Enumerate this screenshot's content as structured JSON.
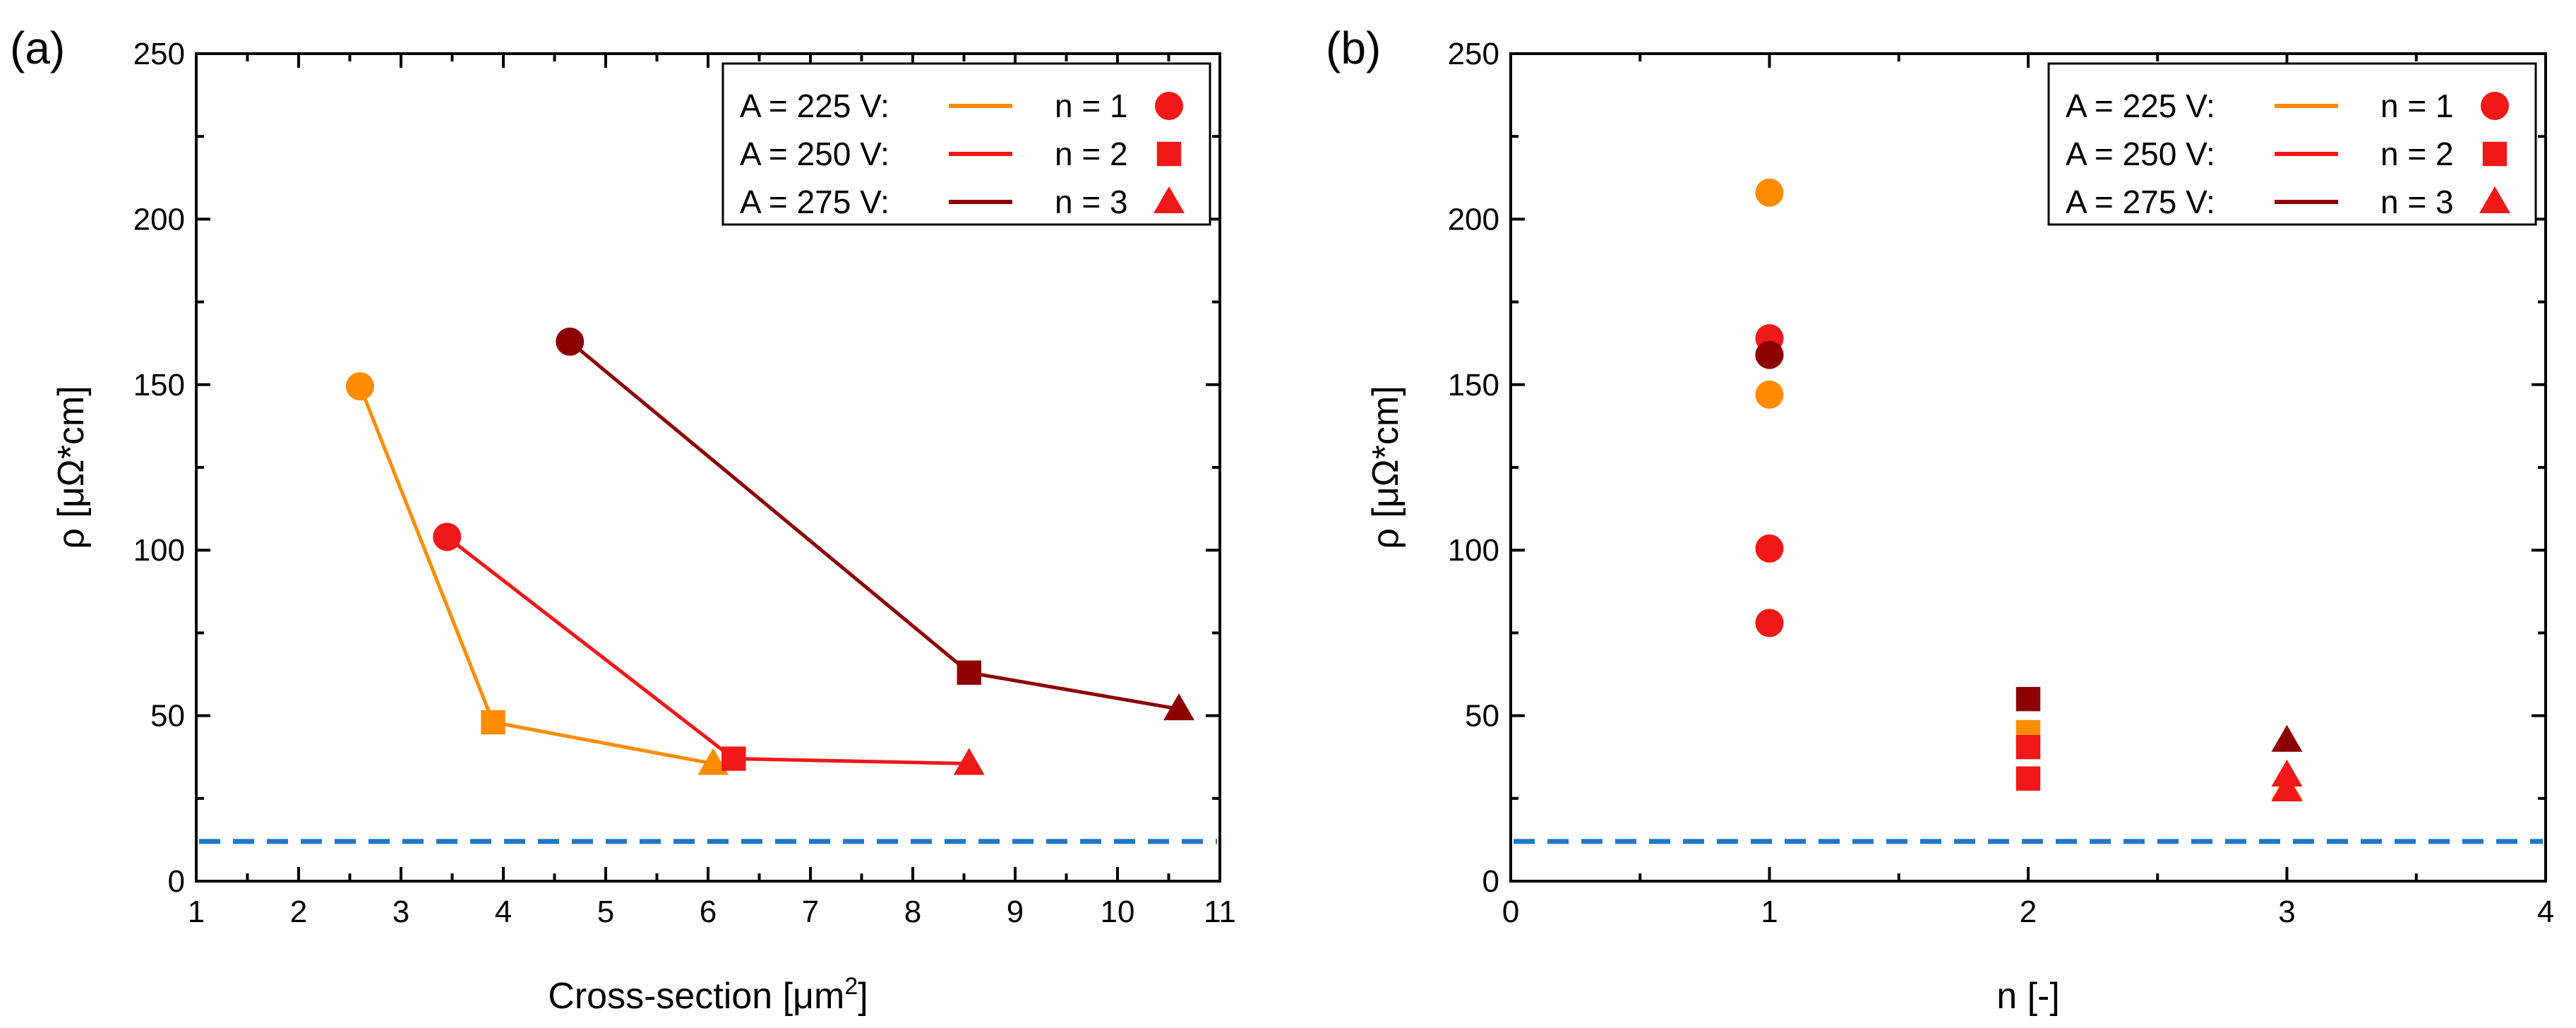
{
  "colors": {
    "v225": "#ff8c00",
    "v250": "#f01818",
    "v275": "#8c0000",
    "marker_legend": "#f01818",
    "reference": "#1f78c8"
  },
  "chart_data": [
    {
      "type": "scatter",
      "panel_label": "(a)",
      "xlabel_prefix": "Cross-section [μm",
      "xlabel_sup": "2",
      "xlabel_suffix": "]",
      "ylabel": "ρ [μΩ*cm]",
      "xlim": [
        1,
        11
      ],
      "ylim": [
        0,
        250
      ],
      "xticks": [
        1,
        2,
        3,
        4,
        5,
        6,
        7,
        8,
        9,
        10,
        11
      ],
      "yticks": [
        0,
        50,
        100,
        150,
        200,
        250
      ],
      "connect_series": true,
      "series": [
        {
          "name": "A = 225 V",
          "color_key": "v225",
          "points": [
            {
              "x": 2.6,
              "y": 149.5,
              "n": 1
            },
            {
              "x": 3.9,
              "y": 48,
              "n": 2
            },
            {
              "x": 6.05,
              "y": 35.5,
              "n": 3
            }
          ]
        },
        {
          "name": "A = 250 V",
          "color_key": "v250",
          "points": [
            {
              "x": 3.45,
              "y": 104,
              "n": 1
            },
            {
              "x": 6.25,
              "y": 37,
              "n": 2
            },
            {
              "x": 8.55,
              "y": 35.5,
              "n": 3
            }
          ]
        },
        {
          "name": "A = 275 V",
          "color_key": "v275",
          "points": [
            {
              "x": 4.65,
              "y": 163,
              "n": 1
            },
            {
              "x": 8.55,
              "y": 63,
              "n": 2
            },
            {
              "x": 10.6,
              "y": 52,
              "n": 3
            }
          ]
        }
      ],
      "reference_line": {
        "y": 12,
        "style": "dashed",
        "color_key": "reference"
      },
      "legend": {
        "position": "top-right",
        "rows": [
          {
            "label": "A = 225 V:",
            "color_key": "v225",
            "n_label": "n = 1",
            "marker": "circle"
          },
          {
            "label": "A = 250 V:",
            "color_key": "v250",
            "n_label": "n = 2",
            "marker": "square"
          },
          {
            "label": "A = 275 V:",
            "color_key": "v275",
            "n_label": "n = 3",
            "marker": "triangle"
          }
        ]
      }
    },
    {
      "type": "scatter",
      "panel_label": "(b)",
      "xlabel": "n [-]",
      "ylabel": "ρ [μΩ*cm]",
      "xlim": [
        0,
        4
      ],
      "ylim": [
        0,
        250
      ],
      "xticks": [
        0,
        1,
        2,
        3,
        4
      ],
      "yticks": [
        0,
        50,
        100,
        150,
        200,
        250
      ],
      "connect_series": false,
      "series": [
        {
          "name": "A = 225 V",
          "color_key": "v225",
          "points": [
            {
              "x": 1,
              "y": 208,
              "n": 1
            },
            {
              "x": 1,
              "y": 147,
              "n": 1
            },
            {
              "x": 2,
              "y": 45,
              "n": 2
            },
            {
              "x": 3,
              "y": 28,
              "n": 3
            }
          ]
        },
        {
          "name": "A = 250 V",
          "color_key": "v250",
          "points": [
            {
              "x": 1,
              "y": 164,
              "n": 1
            },
            {
              "x": 1,
              "y": 100.5,
              "n": 1
            },
            {
              "x": 1,
              "y": 78,
              "n": 1
            },
            {
              "x": 2,
              "y": 40.5,
              "n": 2
            },
            {
              "x": 2,
              "y": 31,
              "n": 2
            },
            {
              "x": 3,
              "y": 32,
              "n": 3
            },
            {
              "x": 3,
              "y": 27.5,
              "n": 3
            }
          ]
        },
        {
          "name": "A = 275 V",
          "color_key": "v275",
          "points": [
            {
              "x": 1,
              "y": 159,
              "n": 1
            },
            {
              "x": 2,
              "y": 55,
              "n": 2
            },
            {
              "x": 3,
              "y": 42.5,
              "n": 3
            }
          ]
        }
      ],
      "reference_line": {
        "y": 12,
        "style": "dashed",
        "color_key": "reference"
      },
      "legend": {
        "position": "top-right",
        "rows": [
          {
            "label": "A = 225 V:",
            "color_key": "v225",
            "n_label": "n = 1",
            "marker": "circle"
          },
          {
            "label": "A = 250 V:",
            "color_key": "v250",
            "n_label": "n = 2",
            "marker": "square"
          },
          {
            "label": "A = 275 V:",
            "color_key": "v275",
            "n_label": "n = 3",
            "marker": "triangle"
          }
        ]
      }
    }
  ]
}
